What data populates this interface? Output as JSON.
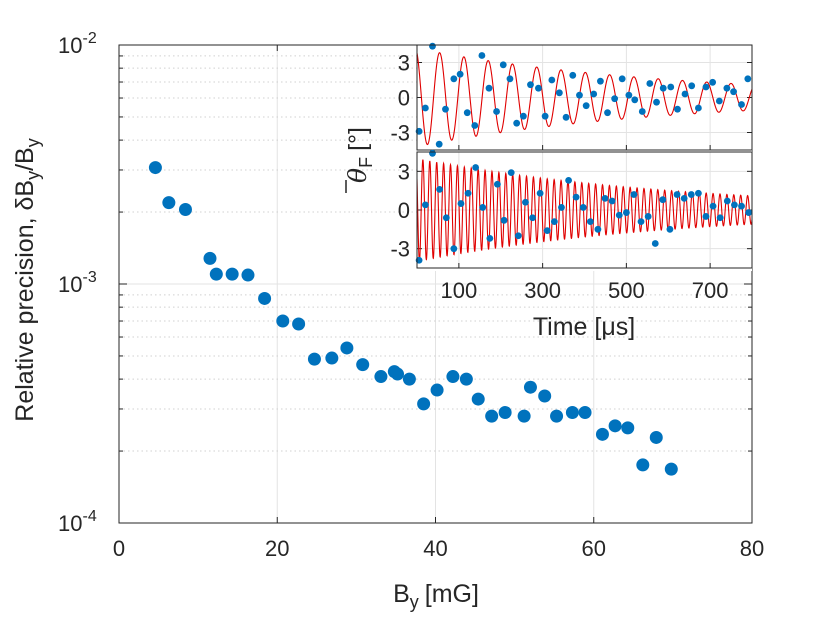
{
  "chart_data": [
    {
      "type": "scatter",
      "role": "main",
      "xlabel": "B",
      "xlabel_sub": "y",
      "xlabel_unit": "[mG]",
      "ylabel_text": "Relative precision, δB",
      "ylabel_sub1": "y",
      "ylabel_mid": "/B",
      "ylabel_sub2": "y",
      "xlim": [
        0,
        80
      ],
      "ylim_log10": [
        -4,
        -2
      ],
      "xticks": [
        "0",
        "20",
        "40",
        "60",
        "80"
      ],
      "xtick_values": [
        0,
        20,
        40,
        60,
        80
      ],
      "yticks": [
        {
          "base": "10",
          "exp": "-4",
          "value": 0.0001
        },
        {
          "base": "10",
          "exp": "-3",
          "value": 0.001
        },
        {
          "base": "10",
          "exp": "-2",
          "value": 0.01
        }
      ],
      "grid": true,
      "marker_color": "#0072BD",
      "series": [
        {
          "name": "precision",
          "x": [
            4.6,
            6.3,
            8.4,
            11.5,
            12.3,
            14.3,
            16.3,
            18.4,
            20.7,
            22.7,
            24.7,
            26.9,
            28.8,
            30.8,
            33.1,
            34.8,
            35.2,
            36.7,
            38.5,
            40.2,
            42.2,
            43.9,
            45.4,
            47.1,
            48.8,
            51.2,
            52.0,
            53.8,
            55.3,
            57.3,
            58.9,
            61.1,
            62.7,
            64.3,
            66.2,
            67.9,
            69.8
          ],
          "y": [
            0.00307,
            0.00219,
            0.00205,
            0.00128,
            0.0011,
            0.0011,
            0.00109,
            0.00087,
            0.0007,
            0.00068,
            0.000485,
            0.00049,
            0.00054,
            0.00046,
            0.00041,
            0.00043,
            0.00042,
            0.0004,
            0.000315,
            0.00036,
            0.00041,
            0.0004,
            0.00033,
            0.00028,
            0.00029,
            0.00028,
            0.00037,
            0.00034,
            0.00028,
            0.00029,
            0.00029,
            0.000235,
            0.000255,
            0.00025,
            0.000175,
            0.000228,
            0.000168
          ]
        }
      ]
    },
    {
      "type": "scatter+line",
      "role": "inset",
      "ylabel_symbol": "θ",
      "ylabel_sub": "F",
      "ylabel_unit": "[°]",
      "xlabel": "Time [μs]",
      "xlim": [
        0,
        800
      ],
      "xticks": [
        "100",
        "300",
        "500",
        "700"
      ],
      "xtick_values": [
        100,
        300,
        500,
        700
      ],
      "yticks": [
        "-3",
        "0",
        "3"
      ],
      "ytick_values": [
        -3,
        0,
        3
      ],
      "ylim": [
        -4.5,
        4.5
      ],
      "line_color": "#E00000",
      "marker_color": "#0072BD",
      "panels": [
        {
          "name": "top",
          "fit": {
            "amplitude": 4.2,
            "period_us": 58,
            "phase": 2.0,
            "decay_us": 600
          },
          "points": {
            "t": [
              5,
              20,
              37,
              53,
              68,
              88,
              103,
              120,
              138,
              155,
              172,
              190,
              206,
              222,
              238,
              254,
              271,
              290,
              306,
              322,
              340,
              356,
              372,
              388,
              404,
              422,
              438,
              455,
              472,
              490,
              506,
              520,
              538,
              556,
              572,
              588,
              606,
              622,
              640,
              656,
              672,
              690,
              706,
              722,
              740,
              756,
              775,
              790
            ],
            "v": [
              -2.9,
              -0.9,
              4.4,
              -4.0,
              -1.0,
              1.6,
              2.0,
              -1.3,
              -2.4,
              3.6,
              0.8,
              -1.2,
              2.8,
              1.6,
              -2.2,
              -1.6,
              1.1,
              0.8,
              -1.6,
              1.5,
              0.4,
              -1.7,
              1.9,
              0.2,
              -0.7,
              0.3,
              1.4,
              -1.3,
              -0.1,
              1.6,
              0.2,
              -0.2,
              -1.2,
              1.2,
              -0.4,
              0.8,
              0.9,
              -1.0,
              0.3,
              1.0,
              -0.9,
              0.9,
              1.3,
              -0.3,
              0.8,
              0.5,
              -0.6,
              1.6
            ]
          }
        },
        {
          "name": "bottom",
          "fit": {
            "amplitude": 4.0,
            "period_us": 16.5,
            "phase": 2.5,
            "decay_us": 620
          },
          "points": {
            "t": [
              5,
              20,
              37,
              54,
              70,
              88,
              105,
              122,
              140,
              157,
              174,
              192,
              208,
              225,
              242,
              259,
              276,
              294,
              311,
              328,
              345,
              362,
              380,
              397,
              414,
              432,
              449,
              466,
              483,
              500,
              518,
              535,
              552,
              569,
              587,
              604,
              621,
              638,
              655,
              672,
              690,
              707,
              724,
              741,
              758,
              775,
              792
            ],
            "v": [
              -3.9,
              0.4,
              4.4,
              1.6,
              -0.6,
              -3.0,
              0.5,
              1.3,
              3.3,
              0.2,
              -2.2,
              2.0,
              -0.8,
              2.9,
              -2.0,
              0.6,
              -0.6,
              1.3,
              -1.6,
              -0.9,
              0.2,
              2.3,
              1.0,
              0.2,
              -0.9,
              -1.5,
              0.9,
              0.7,
              -0.4,
              -0.2,
              1.2,
              -0.9,
              -0.5,
              -2.6,
              0.8,
              -1.5,
              1.2,
              0.9,
              1.2,
              1.3,
              -0.5,
              0.3,
              -0.6,
              0.7,
              0.4,
              0.3,
              -0.2
            ]
          }
        }
      ]
    }
  ]
}
